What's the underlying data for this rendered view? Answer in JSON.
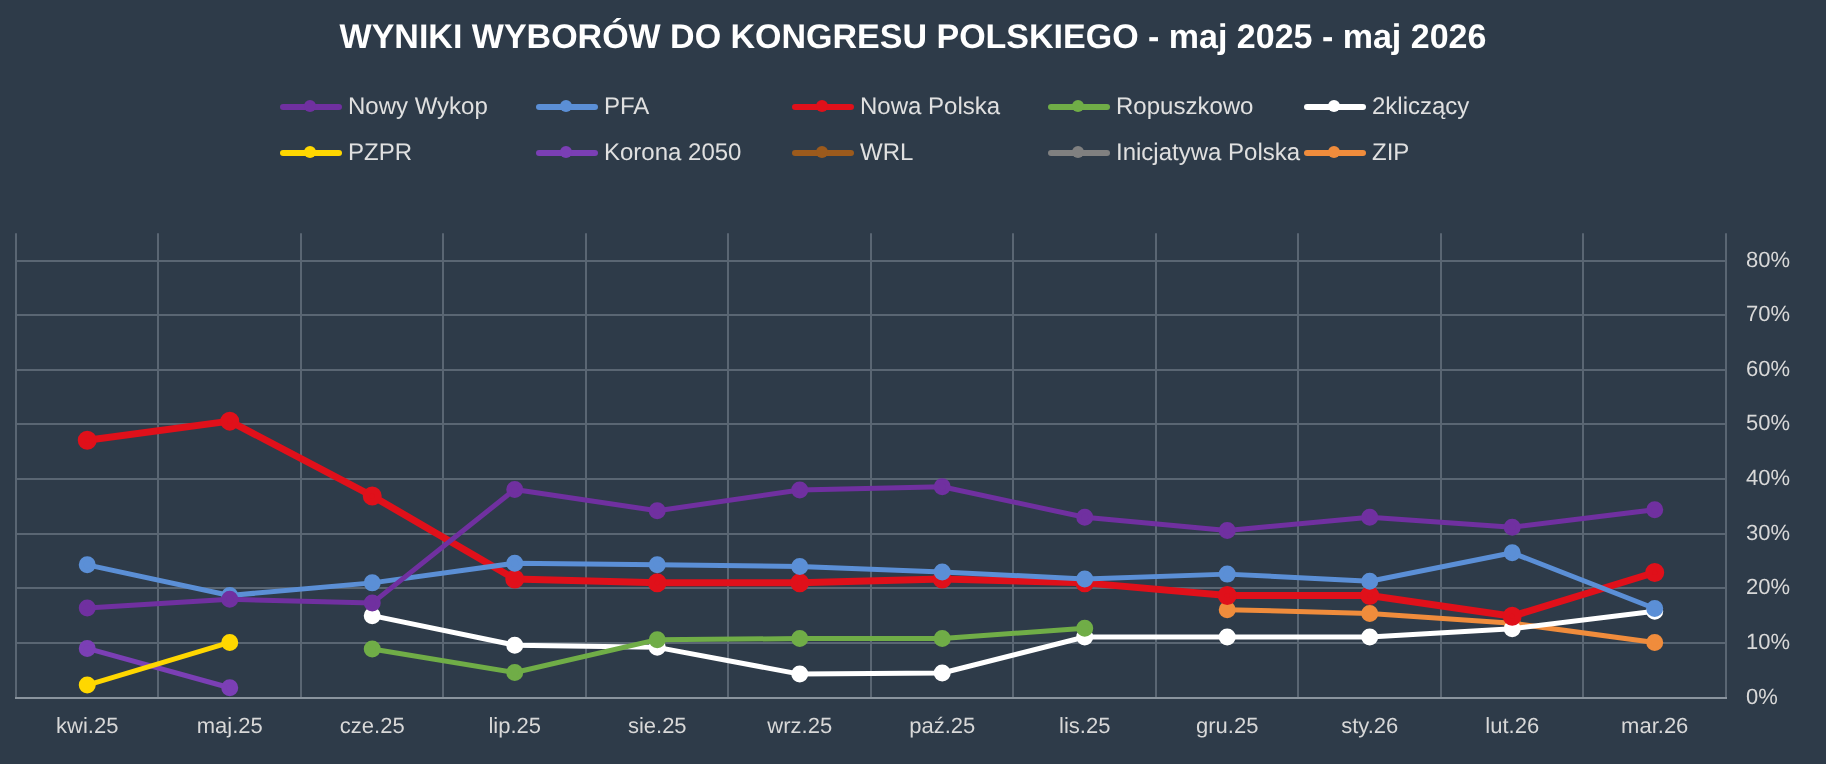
{
  "chart_data": {
    "type": "line",
    "title": "WYNIKI WYBORÓW DO KONGRESU POLSKIEGO - maj 2025 - maj 2026",
    "categories": [
      "kwi.25",
      "maj.25",
      "cze.25",
      "lip.25",
      "sie.25",
      "wrz.25",
      "paź.25",
      "lis.25",
      "gru.25",
      "sty.26",
      "lut.26",
      "mar.26"
    ],
    "series": [
      {
        "name": "Nowy Wykop",
        "color": "#7030a0",
        "values": [
          16.4,
          18,
          17.3,
          38.1,
          34.2,
          38,
          38.6,
          33,
          30.6,
          33,
          31.2,
          34.4
        ]
      },
      {
        "name": "PFA",
        "color": "#5b8fd6",
        "values": [
          24.3,
          18.7,
          21,
          24.6,
          24.3,
          24,
          23,
          21.7,
          22.6,
          21.3,
          26.5,
          16.3
        ]
      },
      {
        "name": "Nowa Polska",
        "color": "#e0101a",
        "values": [
          47.1,
          50.6,
          36.9,
          21.7,
          21,
          21,
          21.7,
          21,
          18.7,
          18.7,
          14.9,
          22.9
        ]
      },
      {
        "name": "Ropuszkowo",
        "color": "#70ad47",
        "values": [
          null,
          null,
          8.9,
          4.6,
          10.6,
          10.8,
          10.8,
          12.7,
          null,
          null,
          null,
          null
        ]
      },
      {
        "name": "2kliczący",
        "color": "#ffffff",
        "values": [
          null,
          null,
          15,
          9.6,
          9.2,
          4.3,
          4.5,
          11.1,
          11.1,
          11.1,
          12.6,
          15.8
        ]
      },
      {
        "name": "PZPR",
        "color": "#ffd700",
        "values": [
          2.3,
          10.1,
          null,
          null,
          null,
          null,
          null,
          null,
          null,
          null,
          null,
          null
        ]
      },
      {
        "name": "Korona 2050",
        "color": "#7b3fb5",
        "values": [
          9,
          1.8,
          null,
          null,
          null,
          null,
          null,
          null,
          null,
          null,
          null,
          null
        ]
      },
      {
        "name": "WRL",
        "color": "#9c5a1c",
        "values": [
          null,
          null,
          null,
          null,
          null,
          null,
          null,
          null,
          null,
          null,
          null,
          null
        ]
      },
      {
        "name": "Inicjatywa Polska",
        "color": "#808080",
        "values": [
          null,
          null,
          null,
          null,
          null,
          null,
          null,
          null,
          null,
          null,
          null,
          null
        ]
      },
      {
        "name": "ZIP",
        "color": "#f08c3c",
        "values": [
          null,
          null,
          null,
          null,
          null,
          null,
          null,
          null,
          16.1,
          15.4,
          13.6,
          10.1
        ]
      }
    ],
    "ylim": [
      0,
      85
    ],
    "yticks": [
      {
        "value": 0,
        "label": "0%"
      },
      {
        "value": 10,
        "label": "10%"
      },
      {
        "value": 20,
        "label": "20%"
      },
      {
        "value": 30,
        "label": "30%"
      },
      {
        "value": 40,
        "label": "40%"
      },
      {
        "value": 50,
        "label": "50%"
      },
      {
        "value": 60,
        "label": "60%"
      },
      {
        "value": 70,
        "label": "70%"
      },
      {
        "value": 80,
        "label": "80%"
      }
    ],
    "grid": true,
    "legend": "top",
    "marker": "circle",
    "line_style": "solid"
  }
}
